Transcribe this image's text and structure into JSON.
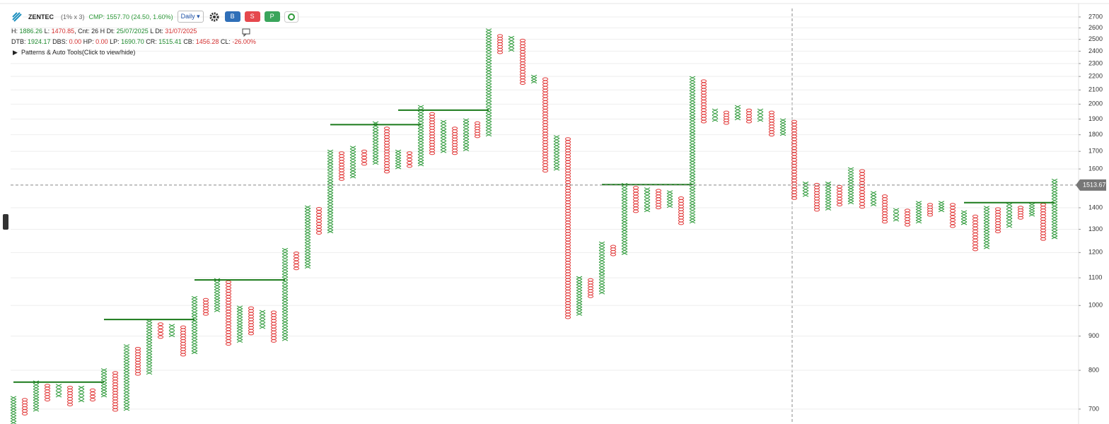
{
  "header": {
    "symbol": "ZENTEC",
    "params": "(1% x 3)",
    "cmp": "CMP: 1557.70 (24.50, 1.60%)",
    "interval": "Daily",
    "buttons": [
      "B",
      "S",
      "P"
    ],
    "stats": [
      [
        {
          "text": "H: "
        },
        {
          "text": "1886.26",
          "color": "#1e8a2e"
        },
        {
          "text": " L: "
        },
        {
          "text": "1470.85",
          "color": "#d32f2f"
        },
        {
          "text": ", Cnt: 26 H Dt: "
        },
        {
          "text": "25/07/2025",
          "color": "#1e8a2e"
        },
        {
          "text": " L Dt: "
        },
        {
          "text": "31/07/2025",
          "color": "#d32f2f"
        }
      ],
      [
        {
          "text": "DTB: "
        },
        {
          "text": "1924.17",
          "color": "#1e8a2e"
        },
        {
          "text": " DBS: "
        },
        {
          "text": "0.00",
          "color": "#d32f2f"
        },
        {
          "text": " HP: "
        },
        {
          "text": "0.00",
          "color": "#d32f2f"
        },
        {
          "text": " LP: "
        },
        {
          "text": "1690.70",
          "color": "#1e8a2e"
        },
        {
          "text": " CR: "
        },
        {
          "text": "1515.41",
          "color": "#1e8a2e"
        },
        {
          "text": " CB: "
        },
        {
          "text": "1456.28",
          "color": "#d32f2f"
        },
        {
          "text": " CL: "
        },
        {
          "text": "-26.00%",
          "color": "#d32f2f"
        }
      ]
    ],
    "tools": "Patterns & Auto Tools(Click to view/hide)"
  },
  "chart_data": {
    "type": "point_and_figure",
    "log_scale": true,
    "grid": true,
    "ylim": [
      665,
      2780
    ],
    "yticks": [
      700,
      800,
      900,
      1000,
      1100,
      1200,
      1300,
      1400,
      1600,
      1700,
      1800,
      1900,
      2000,
      2100,
      2200,
      2300,
      2400,
      2500,
      2600,
      2700
    ],
    "x_color": "#2e9a3a",
    "o_color": "#e23b3b",
    "trend_color": "#1a7a1a",
    "crosshair_price": 1513.67,
    "columns": [
      {
        "type": "X",
        "low": 668,
        "high": 728
      },
      {
        "type": "O",
        "low": 689,
        "high": 723
      },
      {
        "type": "X",
        "low": 698,
        "high": 768
      },
      {
        "type": "O",
        "low": 723,
        "high": 759
      },
      {
        "type": "X",
        "low": 733,
        "high": 759
      },
      {
        "type": "O",
        "low": 711,
        "high": 754
      },
      {
        "type": "X",
        "low": 721,
        "high": 754
      },
      {
        "type": "O",
        "low": 723,
        "high": 747
      },
      {
        "type": "X",
        "low": 733,
        "high": 801
      },
      {
        "type": "O",
        "low": 698,
        "high": 793
      },
      {
        "type": "X",
        "low": 700,
        "high": 870
      },
      {
        "type": "O",
        "low": 790,
        "high": 862
      },
      {
        "type": "X",
        "low": 793,
        "high": 947
      },
      {
        "type": "O",
        "low": 897,
        "high": 938
      },
      {
        "type": "X",
        "low": 902,
        "high": 933
      },
      {
        "type": "O",
        "low": 844,
        "high": 928
      },
      {
        "type": "X",
        "low": 851,
        "high": 1027
      },
      {
        "type": "O",
        "low": 971,
        "high": 1020
      },
      {
        "type": "X",
        "low": 983,
        "high": 1092
      },
      {
        "type": "O",
        "low": 876,
        "high": 1084
      },
      {
        "type": "X",
        "low": 885,
        "high": 994
      },
      {
        "type": "O",
        "low": 908,
        "high": 991
      },
      {
        "type": "X",
        "low": 928,
        "high": 979
      },
      {
        "type": "O",
        "low": 885,
        "high": 977
      },
      {
        "type": "X",
        "low": 890,
        "high": 1212
      },
      {
        "type": "O",
        "low": 1136,
        "high": 1197
      },
      {
        "type": "X",
        "low": 1142,
        "high": 1403
      },
      {
        "type": "O",
        "low": 1284,
        "high": 1395
      },
      {
        "type": "X",
        "low": 1290,
        "high": 1700
      },
      {
        "type": "O",
        "low": 1545,
        "high": 1690
      },
      {
        "type": "X",
        "low": 1558,
        "high": 1723
      },
      {
        "type": "O",
        "low": 1628,
        "high": 1700
      },
      {
        "type": "X",
        "low": 1633,
        "high": 1874
      },
      {
        "type": "O",
        "low": 1585,
        "high": 1840
      },
      {
        "type": "X",
        "low": 1608,
        "high": 1700
      },
      {
        "type": "O",
        "low": 1616,
        "high": 1690
      },
      {
        "type": "X",
        "low": 1624,
        "high": 1982
      },
      {
        "type": "O",
        "low": 1689,
        "high": 1934
      },
      {
        "type": "X",
        "low": 1700,
        "high": 1883
      },
      {
        "type": "O",
        "low": 1689,
        "high": 1840
      },
      {
        "type": "X",
        "low": 1711,
        "high": 1893
      },
      {
        "type": "O",
        "low": 1790,
        "high": 1874
      },
      {
        "type": "X",
        "low": 1800,
        "high": 2580
      },
      {
        "type": "O",
        "low": 2390,
        "high": 2530
      },
      {
        "type": "X",
        "low": 2410,
        "high": 2515
      },
      {
        "type": "O",
        "low": 2150,
        "high": 2490
      },
      {
        "type": "X",
        "low": 2160,
        "high": 2200
      },
      {
        "type": "O",
        "low": 1590,
        "high": 2180
      },
      {
        "type": "X",
        "low": 1600,
        "high": 1787
      },
      {
        "type": "O",
        "low": 960,
        "high": 1774
      },
      {
        "type": "X",
        "low": 971,
        "high": 1100
      },
      {
        "type": "O",
        "low": 1032,
        "high": 1092
      },
      {
        "type": "X",
        "low": 1045,
        "high": 1239
      },
      {
        "type": "O",
        "low": 1192,
        "high": 1225
      },
      {
        "type": "X",
        "low": 1197,
        "high": 1516
      },
      {
        "type": "O",
        "low": 1383,
        "high": 1500
      },
      {
        "type": "X",
        "low": 1387,
        "high": 1493
      },
      {
        "type": "O",
        "low": 1401,
        "high": 1485
      },
      {
        "type": "X",
        "low": 1408,
        "high": 1478
      },
      {
        "type": "O",
        "low": 1327,
        "high": 1447
      },
      {
        "type": "X",
        "low": 1334,
        "high": 2190
      },
      {
        "type": "O",
        "low": 1883,
        "high": 2165
      },
      {
        "type": "X",
        "low": 1893,
        "high": 1958
      },
      {
        "type": "O",
        "low": 1874,
        "high": 1944
      },
      {
        "type": "X",
        "low": 1903,
        "high": 1982
      },
      {
        "type": "O",
        "low": 1883,
        "high": 1958
      },
      {
        "type": "X",
        "low": 1893,
        "high": 1958
      },
      {
        "type": "O",
        "low": 1800,
        "high": 1944
      },
      {
        "type": "X",
        "low": 1804,
        "high": 1893
      },
      {
        "type": "O",
        "low": 1447,
        "high": 1883
      },
      {
        "type": "X",
        "low": 1462,
        "high": 1523
      },
      {
        "type": "O",
        "low": 1390,
        "high": 1516
      },
      {
        "type": "X",
        "low": 1395,
        "high": 1523
      },
      {
        "type": "O",
        "low": 1415,
        "high": 1505
      },
      {
        "type": "X",
        "low": 1425,
        "high": 1600
      },
      {
        "type": "O",
        "low": 1404,
        "high": 1589
      },
      {
        "type": "X",
        "low": 1415,
        "high": 1474
      },
      {
        "type": "O",
        "low": 1334,
        "high": 1457
      },
      {
        "type": "X",
        "low": 1343,
        "high": 1390
      },
      {
        "type": "O",
        "low": 1320,
        "high": 1387
      },
      {
        "type": "X",
        "low": 1334,
        "high": 1425
      },
      {
        "type": "O",
        "low": 1366,
        "high": 1415
      },
      {
        "type": "X",
        "low": 1387,
        "high": 1425
      },
      {
        "type": "O",
        "low": 1314,
        "high": 1415
      },
      {
        "type": "X",
        "low": 1327,
        "high": 1380
      },
      {
        "type": "O",
        "low": 1213,
        "high": 1359
      },
      {
        "type": "X",
        "low": 1221,
        "high": 1401
      },
      {
        "type": "O",
        "low": 1290,
        "high": 1394
      },
      {
        "type": "X",
        "low": 1314,
        "high": 1415
      },
      {
        "type": "O",
        "low": 1352,
        "high": 1401
      },
      {
        "type": "X",
        "low": 1366,
        "high": 1415
      },
      {
        "type": "O",
        "low": 1257,
        "high": 1415
      },
      {
        "type": "X",
        "low": 1264,
        "high": 1538
      }
    ],
    "trend_lines": [
      {
        "value": 768,
        "start_column": 0,
        "end_column": 8
      },
      {
        "value": 953,
        "start_column": 8,
        "end_column": 16
      },
      {
        "value": 1092,
        "start_column": 16,
        "end_column": 24
      },
      {
        "value": 1864,
        "start_column": 28,
        "end_column": 36
      },
      {
        "value": 1959,
        "start_column": 34,
        "end_column": 42
      },
      {
        "value": 1516,
        "start_column": 52,
        "end_column": 60
      },
      {
        "value": 1425,
        "start_column": 84,
        "end_column": 92
      }
    ]
  }
}
